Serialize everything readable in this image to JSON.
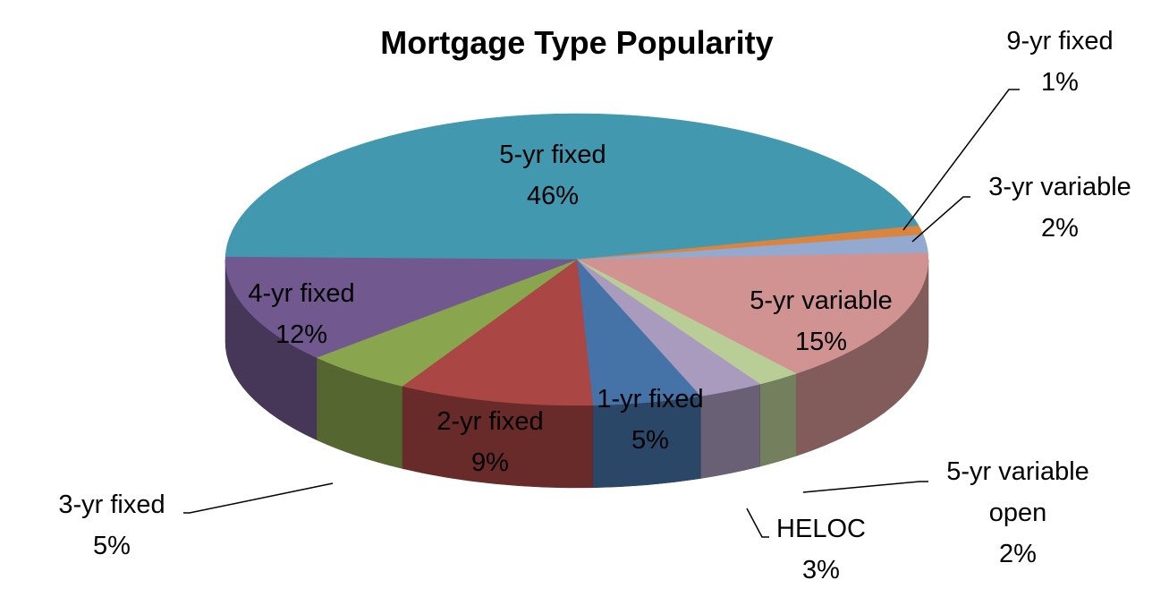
{
  "chart_data": {
    "type": "pie",
    "title": "Mortgage Type Popularity",
    "slices": [
      {
        "name": "5-yr fixed",
        "label": [
          "5-yr fixed"
        ],
        "value": 46,
        "display": "46%",
        "color": "#4198AF"
      },
      {
        "name": "9-yr fixed",
        "label": [
          "9-yr fixed"
        ],
        "value": 1,
        "display": "1%",
        "color": "#DB843D"
      },
      {
        "name": "3-yr variable",
        "label": [
          "3-yr variable"
        ],
        "value": 2,
        "display": "2%",
        "color": "#93A9CF"
      },
      {
        "name": "5-yr variable",
        "label": [
          "5-yr variable"
        ],
        "value": 15,
        "display": "15%",
        "color": "#D19392"
      },
      {
        "name": "5-yr variable open",
        "label": [
          "5-yr variable",
          "open"
        ],
        "value": 2,
        "display": "2%",
        "color": "#B9CD96"
      },
      {
        "name": "HELOC",
        "label": [
          "HELOC"
        ],
        "value": 3,
        "display": "3%",
        "color": "#A99BBD"
      },
      {
        "name": "1-yr fixed",
        "label": [
          "1-yr fixed"
        ],
        "value": 5,
        "display": "5%",
        "color": "#4572A7"
      },
      {
        "name": "2-yr fixed",
        "label": [
          "2-yr fixed"
        ],
        "value": 9,
        "display": "9%",
        "color": "#AA4643"
      },
      {
        "name": "3-yr fixed",
        "label": [
          "3-yr fixed"
        ],
        "value": 5,
        "display": "5%",
        "color": "#89A54E"
      },
      {
        "name": "4-yr fixed",
        "label": [
          "4-yr fixed"
        ],
        "value": 12,
        "display": "12%",
        "color": "#71588F"
      }
    ]
  }
}
